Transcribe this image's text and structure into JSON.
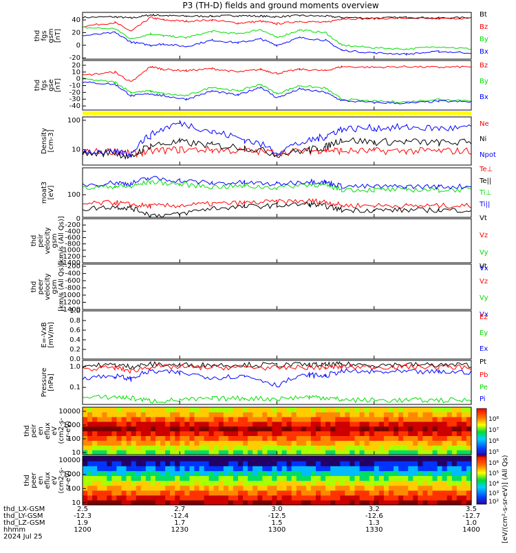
{
  "title": "P3 (TH-D) fields and ground moments overview",
  "time_axis": {
    "rows": [
      {
        "label": "thd_LX-GSM",
        "values": [
          "2.5",
          "2.7",
          "3.0",
          "3.2",
          "3.5"
        ]
      },
      {
        "label": "thd_LY-GSM",
        "values": [
          "-12.3",
          "-12.4",
          "-12.5",
          "-12.6",
          "-12.7"
        ]
      },
      {
        "label": "thd_LZ-GSM",
        "values": [
          "1.9",
          "1.7",
          "1.5",
          "1.3",
          "1.0"
        ]
      },
      {
        "label": "hhmm",
        "values": [
          "1200",
          "1230",
          "1300",
          "1330",
          "1400"
        ]
      }
    ],
    "date": "2024 Jul 25"
  },
  "colorbar": {
    "ions_ticks": [
      "10⁸",
      "10⁷",
      "10⁶",
      "10⁵"
    ],
    "electrons_ticks": [
      "10⁶",
      "10⁵",
      "10⁴",
      "10³",
      "10²"
    ],
    "label": "[eV/(cm²-s-sr-eV)] (All Qs)"
  },
  "colors": {
    "black": "#000000",
    "red": "#ff0000",
    "green": "#00dd00",
    "blue": "#0000ff",
    "yellow": "#ffff00"
  },
  "chart_data": [
    {
      "type": "line",
      "id": "fgs_gsm",
      "ylabel": [
        "thd",
        "fgs",
        "gsm",
        "[nT]"
      ],
      "yticks": [
        "40",
        "20",
        "0",
        "-20"
      ],
      "ylim": [
        -22,
        52
      ],
      "series": [
        {
          "name": "Bt",
          "color": "black",
          "x": [
            1200,
            1210,
            1215,
            1221,
            1225,
            1232,
            1240,
            1248,
            1255,
            1300,
            1307,
            1315,
            1320,
            1330,
            1340,
            1350,
            1400
          ],
          "y": [
            44,
            45,
            43,
            48,
            47,
            46,
            46,
            47,
            46,
            45,
            47,
            46,
            44,
            43,
            44,
            43,
            44
          ]
        },
        {
          "name": "Bz",
          "color": "red",
          "x": [
            1200,
            1210,
            1215,
            1221,
            1225,
            1232,
            1240,
            1248,
            1255,
            1300,
            1307,
            1315,
            1320,
            1330,
            1340,
            1350,
            1400
          ],
          "y": [
            30,
            36,
            22,
            44,
            40,
            38,
            40,
            35,
            38,
            34,
            38,
            36,
            42,
            42,
            43,
            42,
            43
          ]
        },
        {
          "name": "By",
          "color": "green",
          "x": [
            1200,
            1210,
            1215,
            1221,
            1225,
            1232,
            1240,
            1248,
            1255,
            1300,
            1307,
            1315,
            1320,
            1330,
            1340,
            1350,
            1400
          ],
          "y": [
            28,
            26,
            10,
            18,
            15,
            12,
            22,
            18,
            25,
            12,
            24,
            20,
            0,
            -4,
            -6,
            -2,
            -6
          ]
        },
        {
          "name": "Bx",
          "color": "blue",
          "x": [
            1200,
            1210,
            1215,
            1221,
            1225,
            1232,
            1240,
            1248,
            1255,
            1300,
            1307,
            1315,
            1320,
            1330,
            1340,
            1350,
            1400
          ],
          "y": [
            15,
            20,
            5,
            0,
            2,
            -2,
            8,
            4,
            10,
            0,
            12,
            8,
            -8,
            -12,
            -14,
            -10,
            -12
          ]
        }
      ]
    },
    {
      "type": "line",
      "id": "fgs_gse",
      "ylabel": [
        "thd",
        "fgs",
        "gse",
        "[nT]"
      ],
      "yticks": [
        "20",
        "10",
        "0",
        "-10",
        "-20",
        "-30",
        "-40"
      ],
      "ylim": [
        -46,
        27
      ],
      "series": [
        {
          "name": "Bz",
          "color": "red",
          "x": [
            1200,
            1210,
            1215,
            1221,
            1225,
            1232,
            1240,
            1248,
            1255,
            1300,
            1307,
            1315,
            1320,
            1330,
            1340,
            1350,
            1400
          ],
          "y": [
            5,
            10,
            -5,
            18,
            14,
            12,
            15,
            10,
            14,
            8,
            14,
            12,
            18,
            17,
            18,
            17,
            18
          ]
        },
        {
          "name": "By",
          "color": "green",
          "x": [
            1200,
            1210,
            1215,
            1221,
            1225,
            1232,
            1240,
            1248,
            1255,
            1300,
            1307,
            1315,
            1320,
            1330,
            1340,
            1350,
            1400
          ],
          "y": [
            0,
            -5,
            -20,
            -18,
            -22,
            -25,
            -12,
            -18,
            -8,
            -22,
            -10,
            -14,
            -30,
            -33,
            -34,
            -30,
            -32
          ]
        },
        {
          "name": "Bx",
          "color": "blue",
          "x": [
            1200,
            1210,
            1215,
            1221,
            1225,
            1232,
            1240,
            1248,
            1255,
            1300,
            1307,
            1315,
            1320,
            1330,
            1340,
            1350,
            1400
          ],
          "y": [
            -5,
            -8,
            -25,
            -22,
            -25,
            -30,
            -18,
            -24,
            -12,
            -28,
            -15,
            -20,
            -32,
            -35,
            -36,
            -33,
            -34
          ]
        }
      ]
    },
    {
      "type": "line",
      "id": "density",
      "scale": "log",
      "ylabel": [
        "Density",
        "[cm-3]"
      ],
      "yticks": [
        "100",
        "10"
      ],
      "ylim": [
        3,
        130
      ],
      "series": [
        {
          "name": "Ne",
          "color": "red",
          "x": [
            1200,
            1210,
            1215,
            1221,
            1230,
            1240,
            1250,
            1300,
            1310,
            1315,
            1320,
            1330,
            1340,
            1350,
            1400
          ],
          "y": [
            8,
            9,
            7,
            9,
            10,
            10,
            9,
            8,
            9,
            10,
            9,
            9,
            9,
            9,
            9
          ]
        },
        {
          "name": "Ni",
          "color": "black",
          "x": [
            1200,
            1210,
            1215,
            1221,
            1230,
            1240,
            1250,
            1300,
            1310,
            1315,
            1320,
            1330,
            1340,
            1350,
            1400
          ],
          "y": [
            7,
            8,
            5,
            14,
            18,
            14,
            12,
            7,
            10,
            12,
            22,
            18,
            19,
            17,
            18
          ]
        },
        {
          "name": "Npot",
          "color": "blue",
          "x": [
            1200,
            1210,
            1215,
            1221,
            1230,
            1240,
            1250,
            1300,
            1310,
            1315,
            1320,
            1330,
            1340,
            1350,
            1400
          ],
          "y": [
            9,
            8,
            7,
            30,
            80,
            40,
            22,
            8,
            20,
            28,
            50,
            55,
            58,
            52,
            55
          ]
        }
      ]
    },
    {
      "type": "line",
      "id": "temperature",
      "scale": "log",
      "ylabel": [
        "moat3",
        "[eV]"
      ],
      "yticks": [
        "100"
      ],
      "ylim": [
        8,
        2000
      ],
      "series": [
        {
          "name": "Te⊥",
          "color": "red",
          "x": [
            1200,
            1210,
            1215,
            1221,
            1230,
            1240,
            1250,
            1300,
            1310,
            1315,
            1320,
            1330,
            1340,
            1350,
            1400
          ],
          "y": [
            35,
            42,
            32,
            28,
            30,
            36,
            40,
            45,
            50,
            45,
            30,
            30,
            29,
            29,
            29
          ]
        },
        {
          "name": "Te||",
          "color": "black",
          "x": [
            1200,
            1210,
            1215,
            1221,
            1230,
            1240,
            1250,
            1300,
            1310,
            1315,
            1320,
            1330,
            1340,
            1350,
            1400
          ],
          "y": [
            20,
            26,
            22,
            10,
            11,
            22,
            26,
            30,
            35,
            28,
            18,
            18,
            18,
            18,
            18
          ]
        },
        {
          "name": "Ti⊥",
          "color": "green",
          "x": [
            1200,
            1210,
            1215,
            1221,
            1230,
            1240,
            1250,
            1300,
            1310,
            1315,
            1320,
            1330,
            1340,
            1350,
            1400
          ],
          "y": [
            200,
            260,
            240,
            420,
            320,
            240,
            260,
            220,
            320,
            280,
            180,
            170,
            175,
            170,
            175
          ]
        },
        {
          "name": "Ti||",
          "color": "blue",
          "x": [
            1200,
            1210,
            1215,
            1221,
            1230,
            1240,
            1250,
            1300,
            1310,
            1315,
            1320,
            1330,
            1340,
            1350,
            1400
          ],
          "y": [
            300,
            380,
            340,
            640,
            480,
            360,
            380,
            320,
            450,
            400,
            260,
            240,
            250,
            245,
            250
          ]
        }
      ]
    },
    {
      "type": "line",
      "id": "peir_velocity",
      "ylabel": [
        "thd",
        "peir",
        "velocity",
        "gsm",
        "[km/s (All Qs)]"
      ],
      "yticks": [
        "0",
        "-200",
        "-400",
        "-600",
        "-800",
        "-1000",
        "-1200",
        "-1400"
      ],
      "ylim": [
        -1400,
        0
      ],
      "series": [
        {
          "name": "Vt",
          "color": "black",
          "x": [],
          "y": []
        },
        {
          "name": "Vz",
          "color": "red",
          "x": [],
          "y": []
        },
        {
          "name": "Vy",
          "color": "green",
          "x": [],
          "y": []
        },
        {
          "name": "Vx",
          "color": "blue",
          "x": [],
          "y": []
        }
      ]
    },
    {
      "type": "line",
      "id": "peer_velocity",
      "ylabel": [
        "thd",
        "peer",
        "velocity",
        "gsm",
        "[km/s (All Qs)]"
      ],
      "yticks": [
        "-200",
        "-400",
        "-600",
        "-800",
        "-1000",
        "-1200",
        "-1400"
      ],
      "ylim": [
        -1400,
        -140
      ],
      "series": [
        {
          "name": "Vt",
          "color": "black",
          "x": [],
          "y": []
        },
        {
          "name": "Vz",
          "color": "red",
          "x": [],
          "y": []
        },
        {
          "name": "Vy",
          "color": "green",
          "x": [],
          "y": []
        },
        {
          "name": "Vx",
          "color": "blue",
          "x": [],
          "y": []
        }
      ]
    },
    {
      "type": "line",
      "id": "efield",
      "ylabel": [
        "E=-VxB",
        "[mV/m]"
      ],
      "yticks": [
        "1.0",
        "0.8",
        "0.6",
        "0.4",
        "0.2",
        "0.0"
      ],
      "ylim": [
        0,
        1
      ],
      "series": [
        {
          "name": "Ez",
          "color": "red",
          "x": [],
          "y": []
        },
        {
          "name": "Ey",
          "color": "green",
          "x": [],
          "y": []
        },
        {
          "name": "Ex",
          "color": "blue",
          "x": [],
          "y": []
        }
      ]
    },
    {
      "type": "line",
      "id": "pressure",
      "scale": "log",
      "ylabel": [
        "Pressure",
        "[nPa]"
      ],
      "yticks": [
        "1.0",
        "0.1"
      ],
      "ylim": [
        0.015,
        2
      ],
      "series": [
        {
          "name": "Pt",
          "color": "black",
          "x": [
            1200,
            1210,
            1215,
            1221,
            1230,
            1240,
            1250,
            1300,
            1310,
            1315,
            1320,
            1330,
            1340,
            1350,
            1400
          ],
          "y": [
            1.1,
            1.2,
            1.0,
            1.3,
            1.2,
            1.2,
            1.25,
            1.2,
            1.25,
            1.2,
            1.3,
            1.2,
            1.25,
            1.2,
            1.2
          ]
        },
        {
          "name": "Pb",
          "color": "red",
          "x": [
            1200,
            1210,
            1215,
            1221,
            1230,
            1240,
            1250,
            1300,
            1310,
            1315,
            1320,
            1330,
            1340,
            1350,
            1400
          ],
          "y": [
            0.8,
            0.9,
            0.6,
            1.0,
            0.95,
            0.9,
            0.95,
            0.85,
            0.95,
            0.9,
            1.0,
            0.95,
            1.0,
            0.95,
            0.95
          ]
        },
        {
          "name": "Pe",
          "color": "green",
          "x": [
            1200,
            1210,
            1215,
            1221,
            1230,
            1240,
            1250,
            1300,
            1310,
            1315,
            1320,
            1330,
            1340,
            1350,
            1400
          ],
          "y": [
            0.03,
            0.035,
            0.03,
            0.022,
            0.024,
            0.028,
            0.03,
            0.028,
            0.035,
            0.032,
            0.025,
            0.024,
            0.024,
            0.024,
            0.024
          ]
        },
        {
          "name": "Pi",
          "color": "blue",
          "x": [
            1200,
            1210,
            1215,
            1221,
            1230,
            1240,
            1250,
            1300,
            1310,
            1315,
            1320,
            1330,
            1340,
            1350,
            1400
          ],
          "y": [
            0.3,
            0.35,
            0.25,
            0.6,
            0.5,
            0.3,
            0.35,
            0.12,
            0.4,
            0.35,
            0.6,
            0.55,
            0.55,
            0.55,
            0.55
          ]
        }
      ]
    },
    {
      "type": "heatmap",
      "id": "peir_en_eflux",
      "ylabel": [
        "thd",
        "peir",
        "en",
        "eflux",
        "eV",
        "(cm2-s-",
        "sr-eV)"
      ],
      "yticks": [
        "10000",
        "1000",
        "100",
        "10"
      ],
      "scale": "log",
      "ylim": [
        7,
        20000
      ]
    },
    {
      "type": "heatmap",
      "id": "peer_en_eflux",
      "ylabel": [
        "thd",
        "peer",
        "en",
        "eflux",
        "eV",
        "(cm2-s-",
        "sr-eV)"
      ],
      "yticks": [
        "10000",
        "1000",
        "100",
        "10"
      ],
      "scale": "log",
      "ylim": [
        7,
        20000
      ]
    }
  ]
}
